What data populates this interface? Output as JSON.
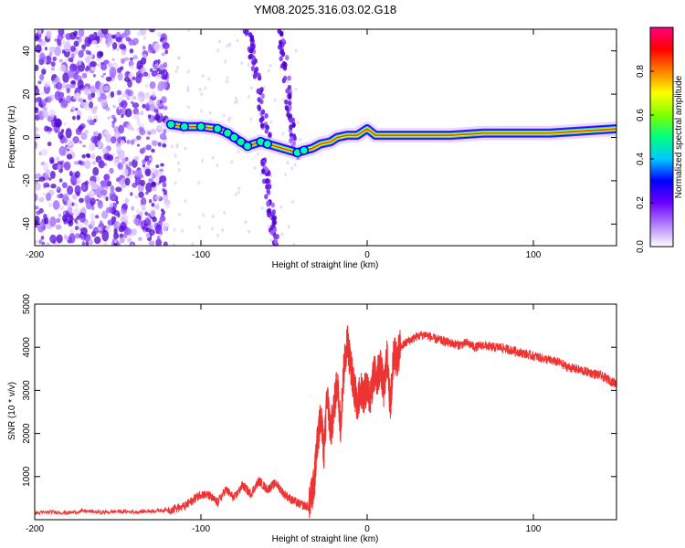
{
  "title": "YM08.2025.316.03.02.G18",
  "chart_data": [
    {
      "type": "heatmap",
      "xlabel": "Height of straight line (km)",
      "ylabel": "Frequency (Hz)",
      "xlim": [
        -200,
        150
      ],
      "ylim": [
        -50,
        50
      ],
      "xticks": [
        -200,
        -100,
        0,
        100
      ],
      "yticks": [
        -40,
        -20,
        0,
        20,
        40
      ],
      "colorbar": {
        "label": "Normalized spectral amplitude",
        "range": [
          0,
          1
        ],
        "ticks": [
          "0.0",
          "0.2",
          "0.4",
          "0.6",
          "0.8"
        ],
        "colors": [
          "#ffffff",
          "#b080ff",
          "#6a00ff",
          "#0000ff",
          "#00c8ff",
          "#00ff80",
          "#80ff00",
          "#ffff00",
          "#ff8000",
          "#ff0000",
          "#ff0080"
        ]
      },
      "ridge": [
        {
          "x": -118,
          "y": 6
        },
        {
          "x": -110,
          "y": 5
        },
        {
          "x": -100,
          "y": 5
        },
        {
          "x": -90,
          "y": 4
        },
        {
          "x": -84,
          "y": 2
        },
        {
          "x": -80,
          "y": 0
        },
        {
          "x": -76,
          "y": -2
        },
        {
          "x": -72,
          "y": -4
        },
        {
          "x": -64,
          "y": -2
        },
        {
          "x": -60,
          "y": -3
        },
        {
          "x": -42,
          "y": -7
        },
        {
          "x": -38,
          "y": -6
        },
        {
          "x": -33,
          "y": -5
        },
        {
          "x": -28,
          "y": -3
        },
        {
          "x": -22,
          "y": -2
        },
        {
          "x": -18,
          "y": 0
        },
        {
          "x": -12,
          "y": 1
        },
        {
          "x": -6,
          "y": 1
        },
        {
          "x": 0,
          "y": 4
        },
        {
          "x": 5,
          "y": 1
        },
        {
          "x": 15,
          "y": 1
        },
        {
          "x": 30,
          "y": 1
        },
        {
          "x": 50,
          "y": 1
        },
        {
          "x": 70,
          "y": 2
        },
        {
          "x": 90,
          "y": 2
        },
        {
          "x": 110,
          "y": 2
        },
        {
          "x": 130,
          "y": 3
        },
        {
          "x": 150,
          "y": 4
        }
      ],
      "noise_region": {
        "x_from": -200,
        "x_to": -120,
        "y_from": -50,
        "y_to": 50
      },
      "streaks": [
        {
          "x_top": -72,
          "x_bottom": -60,
          "y_top": 50,
          "y_bottom": 0
        },
        {
          "x_top": -52,
          "x_bottom": -43,
          "y_top": 50,
          "y_bottom": -10
        },
        {
          "x_top": -62,
          "x_bottom": -55,
          "y_top": -10,
          "y_bottom": -50
        }
      ]
    },
    {
      "type": "line",
      "xlabel": "Height of straight line (km)",
      "ylabel": "SNR (10 * v/v)",
      "xlim": [
        -200,
        150
      ],
      "ylim": [
        0,
        5000
      ],
      "xticks": [
        -200,
        -100,
        0,
        100
      ],
      "yticks": [
        1000,
        2000,
        3000,
        4000,
        5000
      ],
      "color": "#ee3333",
      "series": [
        {
          "x": [
            -200,
            -190,
            -180,
            -170,
            -160,
            -150,
            -140,
            -130,
            -120,
            -110,
            -105,
            -100,
            -95,
            -90,
            -85,
            -80,
            -75,
            -70,
            -65,
            -60,
            -55,
            -50,
            -45,
            -40,
            -35,
            -32,
            -30,
            -28,
            -26,
            -24,
            -22,
            -20,
            -18,
            -16,
            -14,
            -12,
            -10,
            -8,
            -6,
            -4,
            -2,
            0,
            2,
            4,
            6,
            8,
            10,
            12,
            14,
            16,
            18,
            20,
            25,
            30,
            35,
            40,
            45,
            50,
            55,
            60,
            65,
            70,
            75,
            80,
            85,
            90,
            95,
            100,
            105,
            110,
            115,
            120,
            125,
            130,
            135,
            140,
            145,
            150
          ],
          "y": [
            150,
            180,
            160,
            200,
            170,
            190,
            180,
            200,
            230,
            300,
            450,
            600,
            550,
            400,
            700,
            500,
            800,
            600,
            900,
            700,
            850,
            600,
            450,
            350,
            300,
            800,
            1800,
            2400,
            1600,
            2900,
            2000,
            2600,
            3200,
            2200,
            3500,
            4200,
            3600,
            3100,
            2700,
            3000,
            2900,
            3100,
            2800,
            3400,
            3300,
            3600,
            3000,
            3800,
            2600,
            3900,
            3700,
            4000,
            4150,
            4250,
            4300,
            4200,
            4150,
            4100,
            4050,
            4100,
            4000,
            4050,
            4000,
            4000,
            3950,
            3900,
            3850,
            3800,
            3750,
            3700,
            3650,
            3550,
            3500,
            3450,
            3400,
            3350,
            3250,
            3150
          ]
        }
      ]
    }
  ]
}
